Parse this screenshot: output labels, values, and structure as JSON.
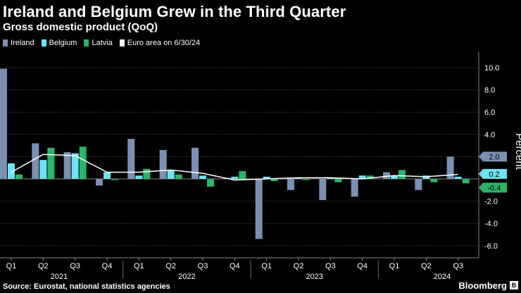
{
  "chart_data": {
    "type": "bar",
    "title": "Ireland and Belgium Grew in the Third Quarter",
    "subtitle": "Gross domestic product (QoQ)",
    "ylabel": "Percent",
    "ylim": [
      -7,
      11
    ],
    "yticks": [
      10.0,
      8.0,
      6.0,
      4.0,
      2.0,
      -2.0,
      -4.0,
      -6.0
    ],
    "ytick_labels": [
      "10.0",
      "8.0",
      "6.0",
      "4.0",
      "2.0",
      "-2.0",
      "-4.0",
      "-6.0"
    ],
    "grid": true,
    "legend_position": "top-left",
    "categories": [
      "Q1",
      "Q2",
      "Q3",
      "Q4",
      "Q1",
      "Q2",
      "Q3",
      "Q4",
      "Q1",
      "Q2",
      "Q3",
      "Q4",
      "Q1",
      "Q2",
      "Q3"
    ],
    "year_labels": [
      {
        "label": "2021",
        "index": 1
      },
      {
        "label": "2022",
        "index": 5
      },
      {
        "label": "2023",
        "index": 9
      },
      {
        "label": "2024",
        "index": 13
      }
    ],
    "series": [
      {
        "name": "Ireland",
        "color": "#7b8fb3",
        "kind": "bar",
        "values": [
          9.9,
          3.2,
          2.4,
          -0.6,
          3.6,
          2.6,
          2.8,
          0.1,
          -5.4,
          -1.0,
          -1.9,
          -1.6,
          0.6,
          -1.0,
          2.0
        ]
      },
      {
        "name": "Belgium",
        "color": "#6fe3f2",
        "kind": "bar",
        "values": [
          1.4,
          1.7,
          2.3,
          0.6,
          0.3,
          0.8,
          0.3,
          0.2,
          0.2,
          0.1,
          0.1,
          0.3,
          0.3,
          0.3,
          0.2
        ]
      },
      {
        "name": "Latvia",
        "color": "#2db36a",
        "kind": "bar",
        "values": [
          0.4,
          2.8,
          2.9,
          -0.1,
          0.9,
          0.4,
          -0.7,
          0.7,
          -0.2,
          -0.1,
          -0.3,
          0.3,
          0.8,
          -0.3,
          -0.4
        ]
      },
      {
        "name": "Euro area on 6/30/24",
        "color": "#ffffff",
        "kind": "line",
        "values": [
          0.6,
          2.2,
          2.1,
          0.6,
          0.6,
          0.8,
          0.5,
          -0.1,
          0.0,
          0.1,
          0.1,
          0.0,
          0.3,
          0.2,
          0.4
        ]
      }
    ],
    "end_labels": [
      {
        "text": "2.0",
        "value": 2.0,
        "color": "#7b8fb3"
      },
      {
        "text": "0.2",
        "value": 0.2,
        "color": "#6fe3f2"
      },
      {
        "text": "-0.4",
        "value": -0.4,
        "color": "#2db36a"
      }
    ]
  },
  "footer": {
    "source": "Source: Eurostat, national statistics agencies",
    "brand": "Bloomberg",
    "brand_icon": "B"
  }
}
